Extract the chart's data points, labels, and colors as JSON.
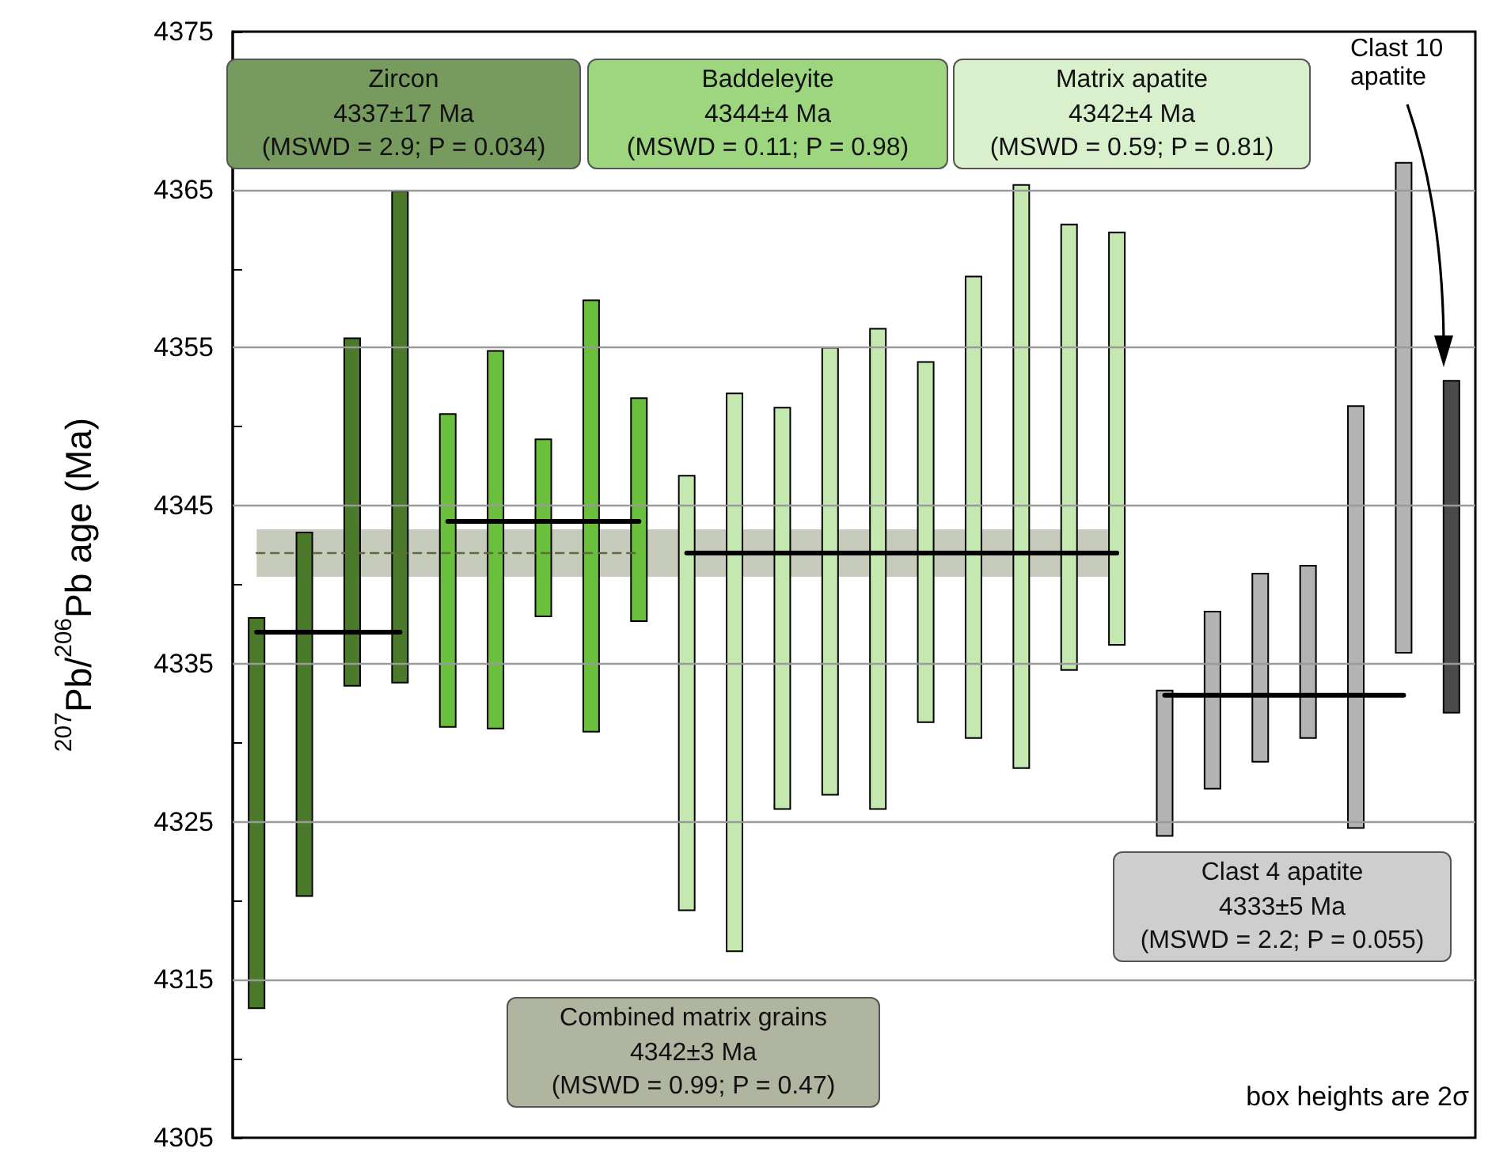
{
  "chart_data": {
    "type": "bar",
    "ylabel": "$^{207}$Pb/$^{206}$Pb age (Ma)",
    "categories": [
      null,
      null,
      null,
      null,
      null,
      null,
      null,
      null,
      null,
      null,
      null,
      null,
      null,
      null,
      null,
      null,
      null,
      null,
      null,
      null,
      null,
      null,
      null,
      null,
      null,
      null
    ],
    "ylim": [
      4305,
      4375
    ],
    "yticks": [
      4305,
      {
        "value": 4310,
        "label": null
      },
      4315,
      {
        "value": 4320,
        "label": null
      },
      4325,
      {
        "value": 4330,
        "label": null
      },
      4335,
      {
        "value": 4340,
        "label": null
      },
      4345,
      {
        "value": 4350,
        "label": null
      },
      4355,
      {
        "value": 4360,
        "label": null
      },
      4365,
      {
        "value": 4370,
        "label": null
      },
      4375
    ],
    "grid": "y",
    "tick_labels": "y",
    "marker": "none",
    "series": [
      {
        "color": "#4a7a2a",
        "base": [
          4313.2,
          4320.3,
          4333.6,
          4333.8,
          null,
          null,
          null,
          null,
          null,
          null,
          null,
          null,
          null,
          null,
          null,
          null,
          null,
          null,
          null,
          null,
          null,
          null,
          null,
          null,
          null,
          null
        ],
        "values": [
          24.7,
          23.0,
          22.0,
          31.1,
          null,
          null,
          null,
          null,
          null,
          null,
          null,
          null,
          null,
          null,
          null,
          null,
          null,
          null,
          null,
          null,
          null,
          null,
          null,
          null,
          null,
          null
        ]
      },
      {
        "color": "#6ac03c",
        "base": [
          null,
          null,
          null,
          null,
          4331.0,
          4330.9,
          4338.0,
          4330.7,
          4337.7,
          null,
          null,
          null,
          null,
          null,
          null,
          null,
          null,
          null,
          null,
          null,
          null,
          null,
          null,
          null,
          null,
          null
        ],
        "values": [
          null,
          null,
          null,
          null,
          19.8,
          23.9,
          11.2,
          27.3,
          14.1,
          null,
          null,
          null,
          null,
          null,
          null,
          null,
          null,
          null,
          null,
          null,
          null,
          null,
          null,
          null,
          null,
          null
        ]
      },
      {
        "color": "#c5e8b0",
        "base": [
          null,
          null,
          null,
          null,
          null,
          null,
          null,
          null,
          null,
          4319.4,
          4316.8,
          4325.8,
          4326.7,
          4325.8,
          4331.3,
          4330.3,
          4328.4,
          4334.6,
          4336.2,
          null,
          null,
          null,
          null,
          null,
          null,
          null
        ],
        "values": [
          null,
          null,
          null,
          null,
          null,
          null,
          null,
          null,
          null,
          27.5,
          35.3,
          25.4,
          28.3,
          30.4,
          22.8,
          29.2,
          36.9,
          28.2,
          26.1,
          null,
          null,
          null,
          null,
          null,
          null,
          null
        ]
      },
      {
        "color": "#b3b3b3",
        "base": [
          null,
          null,
          null,
          null,
          null,
          null,
          null,
          null,
          null,
          null,
          null,
          null,
          null,
          null,
          null,
          null,
          null,
          null,
          null,
          4324.1,
          4327.1,
          4328.8,
          4330.3,
          4324.6,
          4335.7,
          null
        ],
        "values": [
          null,
          null,
          null,
          null,
          null,
          null,
          null,
          null,
          null,
          null,
          null,
          null,
          null,
          null,
          null,
          null,
          null,
          null,
          null,
          9.2,
          11.2,
          11.9,
          10.9,
          26.7,
          31.0,
          null
        ]
      },
      {
        "color": "#4a4a4a",
        "base": [
          null,
          null,
          null,
          null,
          null,
          null,
          null,
          null,
          null,
          null,
          null,
          null,
          null,
          null,
          null,
          null,
          null,
          null,
          null,
          null,
          null,
          null,
          null,
          null,
          null,
          4331.9
        ],
        "values": [
          null,
          null,
          null,
          null,
          null,
          null,
          null,
          null,
          null,
          null,
          null,
          null,
          null,
          null,
          null,
          null,
          null,
          null,
          null,
          null,
          null,
          null,
          null,
          null,
          null,
          21.0
        ]
      },
      {
        "type": "line",
        "color": "#5f6a3f",
        "line_style": "dashed",
        "values": [
          4342,
          4342,
          4342,
          4342,
          4342,
          4342,
          4342,
          4342,
          4342,
          null,
          null,
          null,
          null,
          null,
          null,
          null,
          null,
          null,
          null,
          null,
          null,
          null,
          null,
          null,
          null,
          null
        ],
        "lower": [
          4340.5,
          4340.5,
          4340.5,
          4340.5,
          4340.5,
          4340.5,
          4340.5,
          4340.5,
          4340.5,
          4340.5,
          4340.5,
          4340.5,
          4340.5,
          4340.5,
          4340.5,
          4340.5,
          4340.5,
          4340.5,
          4340.5,
          null,
          null,
          null,
          null,
          null,
          null,
          null
        ],
        "upper": [
          4343.5,
          4343.5,
          4343.5,
          4343.5,
          4343.5,
          4343.5,
          4343.5,
          4343.5,
          4343.5,
          4343.5,
          4343.5,
          4343.5,
          4343.5,
          4343.5,
          4343.5,
          4343.5,
          4343.5,
          4343.5,
          4343.5,
          null,
          null,
          null,
          null,
          null,
          null,
          null
        ]
      },
      {
        "type": "line",
        "color": "#000000",
        "line_style": "solid",
        "values": [
          4337,
          4337,
          4337,
          4337,
          null,
          null,
          null,
          null,
          null,
          null,
          null,
          null,
          null,
          null,
          null,
          null,
          null,
          null,
          null,
          null,
          null,
          null,
          null,
          null,
          null,
          null
        ]
      },
      {
        "type": "line",
        "color": "#000000",
        "line_style": "solid",
        "values": [
          null,
          null,
          null,
          null,
          4344,
          4344,
          4344,
          4344,
          4344,
          null,
          null,
          null,
          null,
          null,
          null,
          null,
          null,
          null,
          null,
          null,
          null,
          null,
          null,
          null,
          null,
          null
        ]
      },
      {
        "type": "line",
        "color": "#000000",
        "line_style": "solid",
        "values": [
          null,
          null,
          null,
          null,
          null,
          null,
          null,
          null,
          null,
          4342,
          4342,
          4342,
          4342,
          4342,
          4342,
          4342,
          4342,
          4342,
          4342,
          null,
          null,
          null,
          null,
          null,
          null,
          null
        ]
      },
      {
        "type": "line",
        "color": "#000000",
        "line_style": "solid",
        "values": [
          null,
          null,
          null,
          null,
          null,
          null,
          null,
          null,
          null,
          null,
          null,
          null,
          null,
          null,
          null,
          null,
          null,
          null,
          null,
          4333,
          4333,
          4333,
          4333,
          4333,
          4333,
          null
        ]
      }
    ],
    "annotations": [
      "Zircon\n4337±17 Ma\n(MSWD = 2.9; P = 0.034)",
      "Baddeleyite\n4344±4 Ma\n(MSWD = 0.11; P = 0.98)",
      "Matrix apatite\n4342±4 Ma\n(MSWD = 0.59; P = 0.81)",
      "Clast 4 apatite\n4333±5 Ma\n(MSWD = 2.2; P = 0.055)",
      "Combined matrix grains\n4342±3 Ma\n(MSWD = 0.99; P = 0.47)",
      "Clast 10\napatite",
      "box heights are 2σ"
    ]
  }
}
